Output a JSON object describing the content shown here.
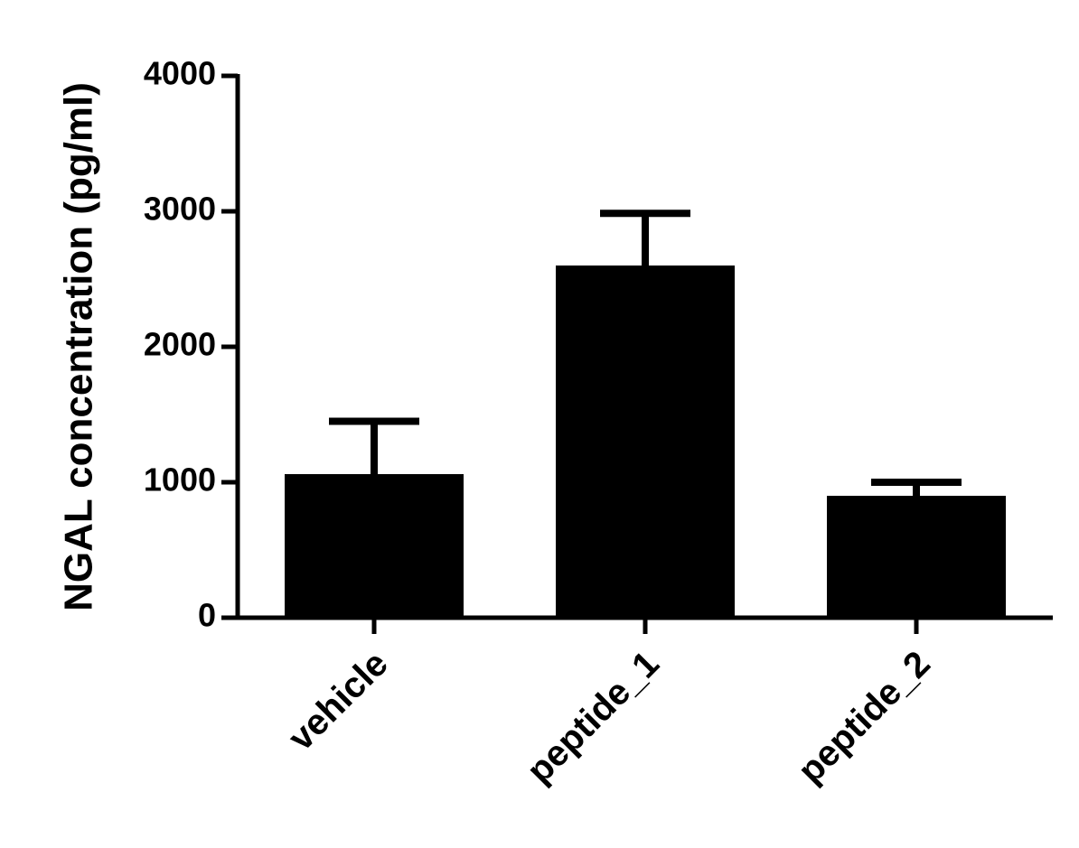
{
  "chart_data": {
    "type": "bar",
    "y_label": "NGAL concentration (pg/ml)",
    "categories": [
      "vehicle",
      "peptide_1",
      "peptide_2"
    ],
    "values": [
      1060,
      2600,
      900
    ],
    "errors": [
      390,
      385,
      100
    ],
    "color": "#000000",
    "ylim": [
      0,
      4000
    ],
    "yticks": [
      0,
      1000,
      2000,
      3000,
      4000
    ]
  }
}
